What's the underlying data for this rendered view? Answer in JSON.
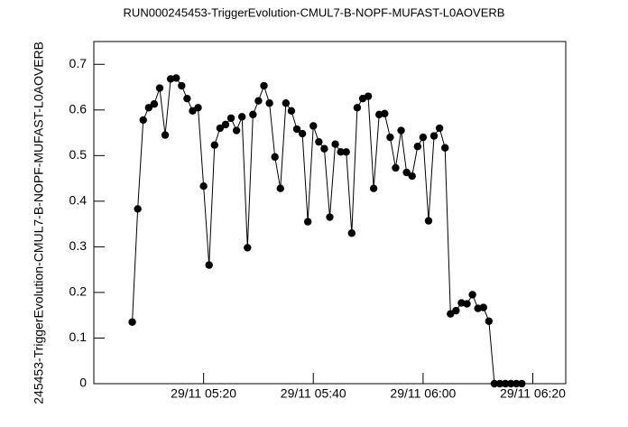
{
  "chart_data": {
    "type": "line",
    "title": "RUN000245453-TriggerEvolution-CMUL7-B-NOPF-MUFAST-L0AOVERB",
    "y_label": "245453-TriggerEvolution-CMUL7-B-NOPF-MUFAST-L0AOVERB",
    "x": [
      "29/11 05:07",
      "29/11 05:08",
      "29/11 05:09",
      "29/11 05:10",
      "29/11 05:11",
      "29/11 05:12",
      "29/11 05:13",
      "29/11 05:14",
      "29/11 05:15",
      "29/11 05:16",
      "29/11 05:17",
      "29/11 05:18",
      "29/11 05:19",
      "29/11 05:20",
      "29/11 05:21",
      "29/11 05:22",
      "29/11 05:23",
      "29/11 05:24",
      "29/11 05:25",
      "29/11 05:26",
      "29/11 05:27",
      "29/11 05:28",
      "29/11 05:29",
      "29/11 05:30",
      "29/11 05:31",
      "29/11 05:32",
      "29/11 05:33",
      "29/11 05:34",
      "29/11 05:35",
      "29/11 05:36",
      "29/11 05:37",
      "29/11 05:38",
      "29/11 05:39",
      "29/11 05:40",
      "29/11 05:41",
      "29/11 05:42",
      "29/11 05:43",
      "29/11 05:44",
      "29/11 05:45",
      "29/11 05:46",
      "29/11 05:47",
      "29/11 05:48",
      "29/11 05:49",
      "29/11 05:50",
      "29/11 05:51",
      "29/11 05:52",
      "29/11 05:53",
      "29/11 05:54",
      "29/11 05:55",
      "29/11 05:56",
      "29/11 05:57",
      "29/11 05:58",
      "29/11 05:59",
      "29/11 06:00",
      "29/11 06:01",
      "29/11 06:02",
      "29/11 06:03",
      "29/11 06:04",
      "29/11 06:05",
      "29/11 06:06",
      "29/11 06:07",
      "29/11 06:08",
      "29/11 06:09",
      "29/11 06:10",
      "29/11 06:11",
      "29/11 06:12",
      "29/11 06:13",
      "29/11 06:14",
      "29/11 06:15",
      "29/11 06:16",
      "29/11 06:17",
      "29/11 06:18"
    ],
    "values": [
      0.135,
      0.383,
      0.578,
      0.605,
      0.613,
      0.648,
      0.545,
      0.668,
      0.67,
      0.653,
      0.625,
      0.598,
      0.605,
      0.433,
      0.26,
      0.523,
      0.56,
      0.568,
      0.582,
      0.555,
      0.585,
      0.298,
      0.59,
      0.62,
      0.653,
      0.615,
      0.497,
      0.428,
      0.615,
      0.598,
      0.558,
      0.548,
      0.355,
      0.565,
      0.53,
      0.515,
      0.365,
      0.525,
      0.508,
      0.508,
      0.33,
      0.605,
      0.625,
      0.63,
      0.428,
      0.59,
      0.592,
      0.54,
      0.473,
      0.555,
      0.463,
      0.455,
      0.52,
      0.54,
      0.357,
      0.543,
      0.56,
      0.517,
      0.153,
      0.16,
      0.177,
      0.175,
      0.195,
      0.165,
      0.167,
      0.137,
      0,
      0,
      0,
      0,
      0,
      0
    ],
    "color": "#000000",
    "xlim": [
      "29/11 05:00",
      "29/11 06:26"
    ],
    "xticks": [
      "29/11 05:20",
      "29/11 05:40",
      "29/11 06:00",
      "29/11 06:20"
    ],
    "ylim": [
      0,
      0.75
    ],
    "yticks": [
      0,
      0.1,
      0.2,
      0.3,
      0.4,
      0.5,
      0.6,
      0.7
    ]
  }
}
